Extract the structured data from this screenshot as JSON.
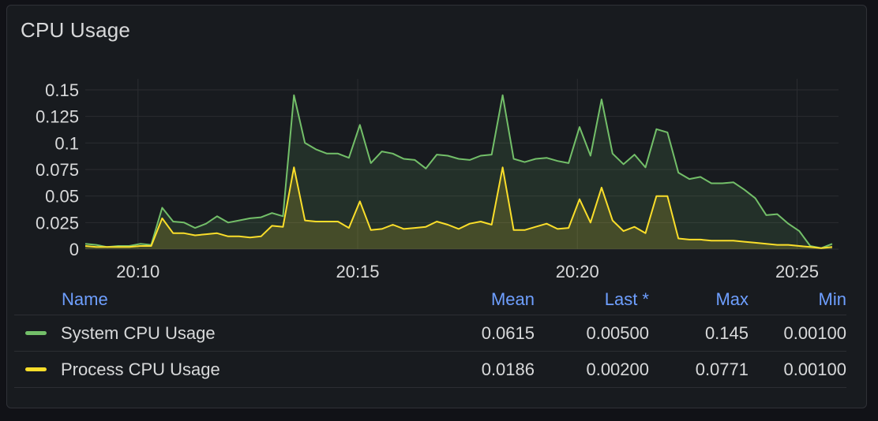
{
  "panel": {
    "title": "CPU Usage"
  },
  "colors": {
    "system": "#73bf69",
    "process": "#fade2a",
    "grid": "#2b2d31",
    "legend_header": "#6e9fff"
  },
  "legend": {
    "headers": {
      "name": "Name",
      "mean": "Mean",
      "last": "Last *",
      "max": "Max",
      "min": "Min"
    },
    "rows": [
      {
        "name": "System CPU Usage",
        "mean": "0.0615",
        "last": "0.00500",
        "max": "0.145",
        "min": "0.00100",
        "color": "#73bf69"
      },
      {
        "name": "Process CPU Usage",
        "mean": "0.0186",
        "last": "0.00200",
        "max": "0.0771",
        "min": "0.00100",
        "color": "#fade2a"
      }
    ]
  },
  "chart_data": {
    "type": "area",
    "title": "CPU Usage",
    "y_ticks": [
      "0",
      "0.025",
      "0.05",
      "0.075",
      "0.1",
      "0.125",
      "0.15"
    ],
    "y_tick_values": [
      0,
      0.025,
      0.05,
      0.075,
      0.1,
      0.125,
      0.15
    ],
    "ylim": [
      0,
      0.15
    ],
    "x_ticks": [
      "20:10",
      "20:15",
      "20:20",
      "20:25"
    ],
    "x_tick_minutes": [
      10,
      15,
      20,
      25
    ],
    "x_unit": "minutes past 20:00",
    "xlim": [
      8.8,
      25.8
    ],
    "grid": true,
    "legend_placement": "bottom",
    "x": [
      8.8,
      9.05,
      9.3,
      9.55,
      9.8,
      10.05,
      10.3,
      10.55,
      10.8,
      11.05,
      11.3,
      11.55,
      11.8,
      12.05,
      12.3,
      12.55,
      12.8,
      13.05,
      13.3,
      13.55,
      13.8,
      14.05,
      14.3,
      14.55,
      14.8,
      15.05,
      15.3,
      15.55,
      15.8,
      16.05,
      16.3,
      16.55,
      16.8,
      17.05,
      17.3,
      17.55,
      17.8,
      18.05,
      18.3,
      18.55,
      18.8,
      19.05,
      19.3,
      19.55,
      19.8,
      20.05,
      20.3,
      20.55,
      20.8,
      21.05,
      21.3,
      21.55,
      21.8,
      22.05,
      22.3,
      22.55,
      22.8,
      23.05,
      23.3,
      23.55,
      23.8,
      24.05,
      24.3,
      24.55,
      24.8,
      25.05,
      25.3,
      25.55,
      25.8
    ],
    "series": [
      {
        "name": "System CPU Usage",
        "values": [
          0.005,
          0.004,
          0.002,
          0.003,
          0.003,
          0.005,
          0.004,
          0.039,
          0.026,
          0.025,
          0.02,
          0.024,
          0.031,
          0.025,
          0.027,
          0.029,
          0.03,
          0.034,
          0.031,
          0.145,
          0.1,
          0.094,
          0.09,
          0.09,
          0.086,
          0.117,
          0.081,
          0.092,
          0.09,
          0.085,
          0.084,
          0.076,
          0.089,
          0.088,
          0.085,
          0.084,
          0.088,
          0.089,
          0.145,
          0.085,
          0.082,
          0.085,
          0.086,
          0.083,
          0.081,
          0.115,
          0.088,
          0.141,
          0.09,
          0.08,
          0.089,
          0.077,
          0.113,
          0.11,
          0.072,
          0.066,
          0.068,
          0.062,
          0.062,
          0.063,
          0.056,
          0.048,
          0.032,
          0.033,
          0.024,
          0.017,
          0.003,
          0.001,
          0.005
        ]
      },
      {
        "name": "Process CPU Usage",
        "values": [
          0.003,
          0.002,
          0.002,
          0.002,
          0.002,
          0.003,
          0.003,
          0.029,
          0.015,
          0.015,
          0.013,
          0.014,
          0.015,
          0.012,
          0.012,
          0.011,
          0.012,
          0.022,
          0.021,
          0.0771,
          0.027,
          0.026,
          0.026,
          0.026,
          0.02,
          0.045,
          0.018,
          0.019,
          0.023,
          0.019,
          0.02,
          0.021,
          0.026,
          0.023,
          0.019,
          0.024,
          0.026,
          0.023,
          0.077,
          0.018,
          0.018,
          0.021,
          0.024,
          0.019,
          0.02,
          0.047,
          0.025,
          0.058,
          0.027,
          0.017,
          0.021,
          0.015,
          0.05,
          0.05,
          0.01,
          0.009,
          0.009,
          0.008,
          0.008,
          0.008,
          0.007,
          0.006,
          0.005,
          0.004,
          0.004,
          0.003,
          0.002,
          0.001,
          0.002
        ]
      }
    ]
  }
}
